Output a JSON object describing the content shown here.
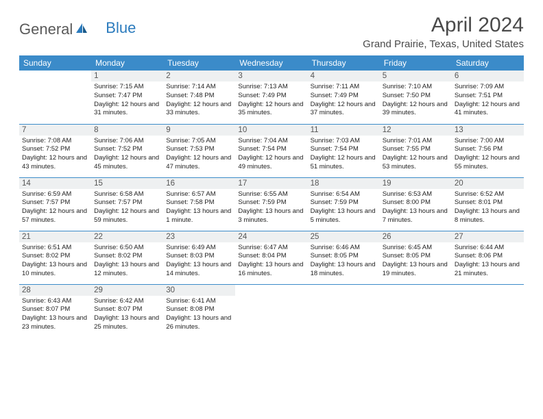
{
  "logo": {
    "part1": "General",
    "part2": "Blue"
  },
  "title": "April 2024",
  "location": "Grand Prairie, Texas, United States",
  "header_bg": "#3b8bc9",
  "header_fg": "#ffffff",
  "daynum_bg": "#eef0f1",
  "border_color": "#3b8bc9",
  "dayNames": [
    "Sunday",
    "Monday",
    "Tuesday",
    "Wednesday",
    "Thursday",
    "Friday",
    "Saturday"
  ],
  "weeks": [
    [
      {
        "n": "",
        "sr": "",
        "ss": "",
        "dl": ""
      },
      {
        "n": "1",
        "sr": "Sunrise: 7:15 AM",
        "ss": "Sunset: 7:47 PM",
        "dl": "Daylight: 12 hours and 31 minutes."
      },
      {
        "n": "2",
        "sr": "Sunrise: 7:14 AM",
        "ss": "Sunset: 7:48 PM",
        "dl": "Daylight: 12 hours and 33 minutes."
      },
      {
        "n": "3",
        "sr": "Sunrise: 7:13 AM",
        "ss": "Sunset: 7:49 PM",
        "dl": "Daylight: 12 hours and 35 minutes."
      },
      {
        "n": "4",
        "sr": "Sunrise: 7:11 AM",
        "ss": "Sunset: 7:49 PM",
        "dl": "Daylight: 12 hours and 37 minutes."
      },
      {
        "n": "5",
        "sr": "Sunrise: 7:10 AM",
        "ss": "Sunset: 7:50 PM",
        "dl": "Daylight: 12 hours and 39 minutes."
      },
      {
        "n": "6",
        "sr": "Sunrise: 7:09 AM",
        "ss": "Sunset: 7:51 PM",
        "dl": "Daylight: 12 hours and 41 minutes."
      }
    ],
    [
      {
        "n": "7",
        "sr": "Sunrise: 7:08 AM",
        "ss": "Sunset: 7:52 PM",
        "dl": "Daylight: 12 hours and 43 minutes."
      },
      {
        "n": "8",
        "sr": "Sunrise: 7:06 AM",
        "ss": "Sunset: 7:52 PM",
        "dl": "Daylight: 12 hours and 45 minutes."
      },
      {
        "n": "9",
        "sr": "Sunrise: 7:05 AM",
        "ss": "Sunset: 7:53 PM",
        "dl": "Daylight: 12 hours and 47 minutes."
      },
      {
        "n": "10",
        "sr": "Sunrise: 7:04 AM",
        "ss": "Sunset: 7:54 PM",
        "dl": "Daylight: 12 hours and 49 minutes."
      },
      {
        "n": "11",
        "sr": "Sunrise: 7:03 AM",
        "ss": "Sunset: 7:54 PM",
        "dl": "Daylight: 12 hours and 51 minutes."
      },
      {
        "n": "12",
        "sr": "Sunrise: 7:01 AM",
        "ss": "Sunset: 7:55 PM",
        "dl": "Daylight: 12 hours and 53 minutes."
      },
      {
        "n": "13",
        "sr": "Sunrise: 7:00 AM",
        "ss": "Sunset: 7:56 PM",
        "dl": "Daylight: 12 hours and 55 minutes."
      }
    ],
    [
      {
        "n": "14",
        "sr": "Sunrise: 6:59 AM",
        "ss": "Sunset: 7:57 PM",
        "dl": "Daylight: 12 hours and 57 minutes."
      },
      {
        "n": "15",
        "sr": "Sunrise: 6:58 AM",
        "ss": "Sunset: 7:57 PM",
        "dl": "Daylight: 12 hours and 59 minutes."
      },
      {
        "n": "16",
        "sr": "Sunrise: 6:57 AM",
        "ss": "Sunset: 7:58 PM",
        "dl": "Daylight: 13 hours and 1 minute."
      },
      {
        "n": "17",
        "sr": "Sunrise: 6:55 AM",
        "ss": "Sunset: 7:59 PM",
        "dl": "Daylight: 13 hours and 3 minutes."
      },
      {
        "n": "18",
        "sr": "Sunrise: 6:54 AM",
        "ss": "Sunset: 7:59 PM",
        "dl": "Daylight: 13 hours and 5 minutes."
      },
      {
        "n": "19",
        "sr": "Sunrise: 6:53 AM",
        "ss": "Sunset: 8:00 PM",
        "dl": "Daylight: 13 hours and 7 minutes."
      },
      {
        "n": "20",
        "sr": "Sunrise: 6:52 AM",
        "ss": "Sunset: 8:01 PM",
        "dl": "Daylight: 13 hours and 8 minutes."
      }
    ],
    [
      {
        "n": "21",
        "sr": "Sunrise: 6:51 AM",
        "ss": "Sunset: 8:02 PM",
        "dl": "Daylight: 13 hours and 10 minutes."
      },
      {
        "n": "22",
        "sr": "Sunrise: 6:50 AM",
        "ss": "Sunset: 8:02 PM",
        "dl": "Daylight: 13 hours and 12 minutes."
      },
      {
        "n": "23",
        "sr": "Sunrise: 6:49 AM",
        "ss": "Sunset: 8:03 PM",
        "dl": "Daylight: 13 hours and 14 minutes."
      },
      {
        "n": "24",
        "sr": "Sunrise: 6:47 AM",
        "ss": "Sunset: 8:04 PM",
        "dl": "Daylight: 13 hours and 16 minutes."
      },
      {
        "n": "25",
        "sr": "Sunrise: 6:46 AM",
        "ss": "Sunset: 8:05 PM",
        "dl": "Daylight: 13 hours and 18 minutes."
      },
      {
        "n": "26",
        "sr": "Sunrise: 6:45 AM",
        "ss": "Sunset: 8:05 PM",
        "dl": "Daylight: 13 hours and 19 minutes."
      },
      {
        "n": "27",
        "sr": "Sunrise: 6:44 AM",
        "ss": "Sunset: 8:06 PM",
        "dl": "Daylight: 13 hours and 21 minutes."
      }
    ],
    [
      {
        "n": "28",
        "sr": "Sunrise: 6:43 AM",
        "ss": "Sunset: 8:07 PM",
        "dl": "Daylight: 13 hours and 23 minutes."
      },
      {
        "n": "29",
        "sr": "Sunrise: 6:42 AM",
        "ss": "Sunset: 8:07 PM",
        "dl": "Daylight: 13 hours and 25 minutes."
      },
      {
        "n": "30",
        "sr": "Sunrise: 6:41 AM",
        "ss": "Sunset: 8:08 PM",
        "dl": "Daylight: 13 hours and 26 minutes."
      },
      {
        "n": "",
        "sr": "",
        "ss": "",
        "dl": ""
      },
      {
        "n": "",
        "sr": "",
        "ss": "",
        "dl": ""
      },
      {
        "n": "",
        "sr": "",
        "ss": "",
        "dl": ""
      },
      {
        "n": "",
        "sr": "",
        "ss": "",
        "dl": ""
      }
    ]
  ]
}
